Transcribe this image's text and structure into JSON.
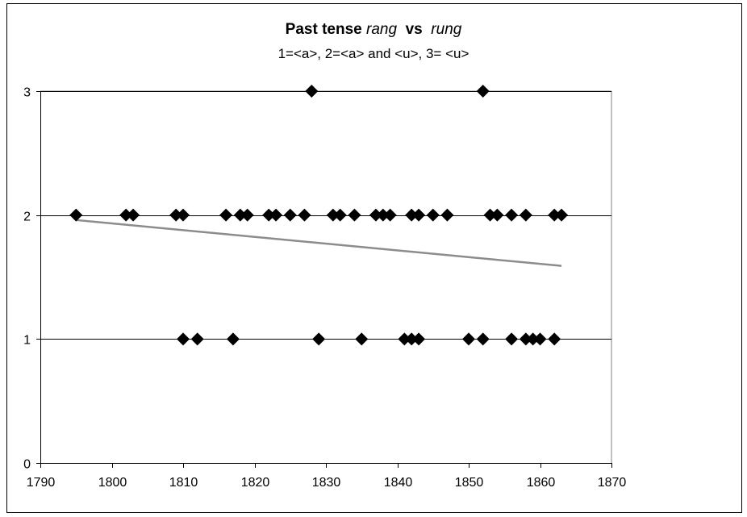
{
  "chart_data": {
    "type": "scatter",
    "title_bold_1": "Past tense",
    "title_italic_1": "rang",
    "title_bold_2": "vs",
    "title_italic_2": "rung",
    "subtitle": "1=<a>,  2=<a> and <u>, 3= <u>",
    "xlabel": "",
    "ylabel": "",
    "xlim": [
      1790,
      1870
    ],
    "ylim": [
      0,
      3
    ],
    "x_ticks": [
      1790,
      1800,
      1810,
      1820,
      1830,
      1840,
      1850,
      1860,
      1870
    ],
    "y_ticks": [
      0,
      1,
      2,
      3
    ],
    "gridlines": "horizontal",
    "legend": "none",
    "colors": {
      "points": "#000000",
      "trendline": "#8c8c8c",
      "grid": "#000000"
    },
    "points": [
      {
        "x": 1795,
        "y": 2
      },
      {
        "x": 1802,
        "y": 2
      },
      {
        "x": 1803,
        "y": 2
      },
      {
        "x": 1809,
        "y": 2
      },
      {
        "x": 1810,
        "y": 2
      },
      {
        "x": 1816,
        "y": 2
      },
      {
        "x": 1818,
        "y": 2
      },
      {
        "x": 1819,
        "y": 2
      },
      {
        "x": 1822,
        "y": 2
      },
      {
        "x": 1823,
        "y": 2
      },
      {
        "x": 1825,
        "y": 2
      },
      {
        "x": 1827,
        "y": 2
      },
      {
        "x": 1831,
        "y": 2
      },
      {
        "x": 1832,
        "y": 2
      },
      {
        "x": 1834,
        "y": 2
      },
      {
        "x": 1837,
        "y": 2
      },
      {
        "x": 1838,
        "y": 2
      },
      {
        "x": 1839,
        "y": 2
      },
      {
        "x": 1842,
        "y": 2
      },
      {
        "x": 1843,
        "y": 2
      },
      {
        "x": 1845,
        "y": 2
      },
      {
        "x": 1847,
        "y": 2
      },
      {
        "x": 1853,
        "y": 2
      },
      {
        "x": 1854,
        "y": 2
      },
      {
        "x": 1856,
        "y": 2
      },
      {
        "x": 1858,
        "y": 2
      },
      {
        "x": 1862,
        "y": 2
      },
      {
        "x": 1863,
        "y": 2
      },
      {
        "x": 1828,
        "y": 3
      },
      {
        "x": 1852,
        "y": 3
      },
      {
        "x": 1810,
        "y": 1
      },
      {
        "x": 1812,
        "y": 1
      },
      {
        "x": 1817,
        "y": 1
      },
      {
        "x": 1829,
        "y": 1
      },
      {
        "x": 1835,
        "y": 1
      },
      {
        "x": 1841,
        "y": 1
      },
      {
        "x": 1842,
        "y": 1
      },
      {
        "x": 1843,
        "y": 1
      },
      {
        "x": 1850,
        "y": 1
      },
      {
        "x": 1852,
        "y": 1
      },
      {
        "x": 1856,
        "y": 1
      },
      {
        "x": 1858,
        "y": 1
      },
      {
        "x": 1859,
        "y": 1
      },
      {
        "x": 1860,
        "y": 1
      },
      {
        "x": 1862,
        "y": 1
      }
    ],
    "trendline": {
      "x": [
        1795,
        1863
      ],
      "y": [
        1.96,
        1.59
      ]
    }
  }
}
